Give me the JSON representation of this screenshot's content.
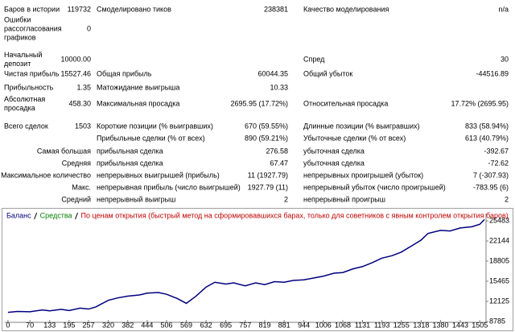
{
  "report": {
    "rows": [
      {
        "label": "Баров в истории",
        "value": "119732",
        "label2": "Смоделировано тиков",
        "value2": "238381",
        "label3": "Качество моделирования",
        "value3": "n/a"
      },
      {
        "label": "Ошибки рассогласования графиков",
        "value": "0"
      },
      {
        "label": "Начальный депозит",
        "value": "10000.00",
        "label3": "Спред",
        "value3": "30"
      },
      {
        "label": "Чистая прибыль",
        "value": "15527.46",
        "label2": "Общая прибыль",
        "value2": "60044.35",
        "label3": "Общий убыток",
        "value3": "-44516.89"
      },
      {
        "label": "Прибыльность",
        "value": "1.35",
        "label2": "Матожидание выигрыша",
        "value2": "10.33"
      },
      {
        "label": "Абсолютная просадка",
        "value": "458.30",
        "label2": "Максимальная просадка",
        "value2": "2695.95 (17.72%)",
        "label3": "Относительная просадка",
        "value3": "17.72% (2695.95)"
      },
      {
        "label": "Всего сделок",
        "value": "1503",
        "label2": "Короткие позиции (% выигравших)",
        "value2": "670 (59.55%)",
        "label3": "Длинные позиции (% выигравших)",
        "value3": "833 (58.94%)"
      },
      {
        "label2": "Прибыльные сделки (% от всех)",
        "value2": "890 (59.21%)",
        "label3": "Убыточные сделки (% от всех)",
        "value3": "613 (40.79%)"
      },
      {
        "group": "Самая большая",
        "label2": "прибыльная сделка",
        "value2": "276.58",
        "label3": "убыточная сделка",
        "value3": "-392.67"
      },
      {
        "group": "Средняя",
        "label2": "прибыльная сделка",
        "value2": "67.47",
        "label3": "убыточная сделка",
        "value3": "-72.62"
      },
      {
        "group": "Максимальное количество",
        "label2": "непрерывных выигрышей (прибыль)",
        "value2": "11 (1927.79)",
        "label3": "непрерывных проигрышей (убыток)",
        "value3": "7 (-307.93)"
      },
      {
        "group": "Макс.",
        "label2": "непрерывная прибыль (число выигрышей)",
        "value2": "1927.79 (11)",
        "label3": "непрерывный убыток (число проигрышей)",
        "value3": "-783.95 (6)"
      },
      {
        "group": "Средний",
        "label2": "непрерывный выигрыш",
        "value2": "2",
        "label3": "непрерывный проигрыш",
        "value3": "2"
      }
    ]
  },
  "chart_data": {
    "type": "line",
    "subtitle": "По ценам открытия (быстрый метод на сформировавшихся барах, только для советников с явным контролем открытия баров)",
    "subtitle_color": "#c00000",
    "x": [
      0,
      30,
      70,
      110,
      133,
      170,
      195,
      230,
      257,
      280,
      320,
      350,
      382,
      420,
      444,
      480,
      506,
      540,
      569,
      600,
      632,
      660,
      695,
      720,
      757,
      790,
      819,
      850,
      881,
      910,
      944,
      975,
      1006,
      1040,
      1068,
      1100,
      1131,
      1160,
      1193,
      1225,
      1255,
      1290,
      1318,
      1340,
      1380,
      1410,
      1443,
      1480,
      1505,
      1520
    ],
    "series": [
      {
        "name": "Баланс",
        "color": "#000080",
        "values": [
          10300,
          10450,
          10400,
          10700,
          10550,
          10800,
          10600,
          11000,
          10850,
          11200,
          12300,
          12700,
          13000,
          13200,
          13500,
          13600,
          13300,
          12600,
          11800,
          13000,
          14500,
          15300,
          15000,
          15200,
          14700,
          15200,
          14900,
          15400,
          15300,
          15600,
          15700,
          16000,
          16300,
          16800,
          16900,
          17500,
          17900,
          18500,
          19300,
          19700,
          20300,
          21400,
          22300,
          23400,
          23900,
          23800,
          24300,
          24500,
          24900,
          25700
        ]
      },
      {
        "name": "Средства",
        "color": "#008000"
      }
    ],
    "xlim": [
      -10,
      1525
    ],
    "ylim": [
      8650,
      26690
    ],
    "xticks": [
      0,
      70,
      133,
      195,
      257,
      320,
      382,
      444,
      506,
      569,
      632,
      695,
      757,
      819,
      881,
      944,
      1006,
      1068,
      1131,
      1193,
      1255,
      1318,
      1380,
      1443,
      1505
    ],
    "yticks": [
      8785,
      12125,
      15465,
      18805,
      22144,
      25483
    ]
  }
}
